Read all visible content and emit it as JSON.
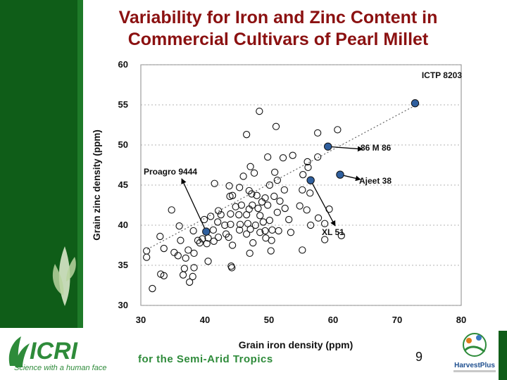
{
  "slide": {
    "title_line1": "Variability for Iron and Zinc Content in",
    "title_line2": "Commercial Cultivars of Pearl Millet",
    "page_number": "9",
    "tagline": "for the Semi-Arid Tropics",
    "logo_left": {
      "name": "ICRISAT",
      "slogan": "Science with a human face"
    },
    "logo_right": {
      "name": "HarvestPlus"
    },
    "colors": {
      "title": "#8b1111",
      "sidebar": "#0f5d18",
      "highlight": "#2f5f9e",
      "tagline": "#2e8b3a"
    }
  },
  "chart_data": {
    "type": "scatter",
    "xlabel": "Grain iron density (ppm)",
    "ylabel": "Grain zinc density (ppm)",
    "xlim": [
      30,
      80
    ],
    "ylim": [
      30,
      60
    ],
    "xticks": [
      30,
      40,
      50,
      60,
      70,
      80
    ],
    "yticks": [
      30,
      35,
      40,
      45,
      50,
      55,
      60
    ],
    "grid": "horizontal dashed",
    "trendline": {
      "x": [
        31,
        73
      ],
      "y": [
        37,
        55
      ]
    },
    "series": [
      {
        "marker": "open circle",
        "points": [
          [
            48.5,
            54.2
          ],
          [
            51.1,
            52.3
          ],
          [
            57.6,
            51.5
          ],
          [
            60.7,
            51.9
          ],
          [
            46.5,
            51.3
          ],
          [
            53.7,
            48.7
          ],
          [
            57.6,
            48.5
          ],
          [
            49.8,
            48.5
          ],
          [
            52.2,
            48.4
          ],
          [
            47.1,
            47.3
          ],
          [
            56.0,
            47.9
          ],
          [
            56.1,
            47.2
          ],
          [
            50.9,
            46.6
          ],
          [
            47.7,
            46.5
          ],
          [
            46.0,
            46.1
          ],
          [
            55.3,
            46.3
          ],
          [
            51.3,
            45.6
          ],
          [
            41.5,
            45.2
          ],
          [
            43.8,
            44.9
          ],
          [
            50.1,
            45.0
          ],
          [
            52.4,
            44.4
          ],
          [
            55.2,
            44.4
          ],
          [
            56.4,
            44.0
          ],
          [
            45.4,
            44.7
          ],
          [
            46.9,
            44.3
          ],
          [
            47.3,
            43.9
          ],
          [
            48.1,
            43.7
          ],
          [
            49.4,
            43.4
          ],
          [
            50.8,
            43.6
          ],
          [
            43.9,
            43.6
          ],
          [
            44.3,
            43.7
          ],
          [
            51.7,
            43.0
          ],
          [
            48.9,
            42.9
          ],
          [
            49.8,
            42.5
          ],
          [
            48.3,
            42.1
          ],
          [
            47.4,
            42.5
          ],
          [
            45.7,
            42.5
          ],
          [
            44.8,
            42.3
          ],
          [
            46.9,
            42.0
          ],
          [
            52.5,
            42.1
          ],
          [
            54.8,
            42.4
          ],
          [
            55.9,
            41.9
          ],
          [
            48.6,
            41.2
          ],
          [
            46.5,
            41.3
          ],
          [
            45.3,
            41.3
          ],
          [
            44.0,
            41.4
          ],
          [
            42.5,
            41.3
          ],
          [
            40.9,
            41.1
          ],
          [
            42.1,
            41.8
          ],
          [
            51.3,
            41.6
          ],
          [
            57.7,
            40.9
          ],
          [
            59.4,
            42.0
          ],
          [
            58.7,
            40.2
          ],
          [
            56.5,
            40.0
          ],
          [
            53.1,
            40.7
          ],
          [
            50.1,
            40.6
          ],
          [
            49.1,
            40.4
          ],
          [
            47.9,
            40.0
          ],
          [
            46.7,
            40.2
          ],
          [
            45.5,
            40.1
          ],
          [
            44.0,
            40.1
          ],
          [
            43.1,
            40.0
          ],
          [
            42.0,
            40.4
          ],
          [
            39.9,
            40.7
          ],
          [
            34.8,
            41.9
          ],
          [
            50.5,
            39.4
          ],
          [
            51.5,
            39.3
          ],
          [
            53.4,
            39.1
          ],
          [
            48.6,
            39.1
          ],
          [
            49.4,
            39.3
          ],
          [
            45.4,
            39.4
          ],
          [
            47.1,
            39.5
          ],
          [
            46.5,
            38.9
          ],
          [
            41.3,
            39.4
          ],
          [
            38.2,
            39.3
          ],
          [
            36.0,
            39.9
          ],
          [
            43.3,
            38.9
          ],
          [
            42.1,
            38.5
          ],
          [
            40.5,
            38.4
          ],
          [
            39.6,
            38.3
          ],
          [
            38.9,
            38.1
          ],
          [
            39.2,
            37.8
          ],
          [
            40.3,
            37.7
          ],
          [
            41.4,
            38.0
          ],
          [
            43.7,
            38.5
          ],
          [
            49.5,
            38.4
          ],
          [
            50.4,
            38.1
          ],
          [
            44.3,
            37.5
          ],
          [
            47.5,
            37.8
          ],
          [
            58.7,
            38.2
          ],
          [
            61.3,
            38.7
          ],
          [
            33.0,
            38.6
          ],
          [
            36.2,
            38.1
          ],
          [
            35.2,
            36.6
          ],
          [
            33.6,
            37.1
          ],
          [
            35.8,
            36.2
          ],
          [
            37.4,
            36.9
          ],
          [
            38.3,
            36.5
          ],
          [
            47.0,
            36.5
          ],
          [
            50.3,
            36.8
          ],
          [
            55.2,
            36.9
          ],
          [
            30.9,
            36.8
          ],
          [
            30.9,
            36.0
          ],
          [
            37.0,
            35.9
          ],
          [
            40.5,
            35.5
          ],
          [
            36.8,
            34.6
          ],
          [
            38.3,
            34.7
          ],
          [
            44.1,
            34.9
          ],
          [
            44.2,
            34.7
          ],
          [
            33.1,
            33.9
          ],
          [
            33.6,
            33.7
          ],
          [
            36.6,
            33.8
          ],
          [
            38.1,
            33.6
          ],
          [
            37.6,
            32.9
          ],
          [
            31.8,
            32.1
          ]
        ]
      }
    ],
    "highlighted": [
      {
        "label": "ICTP 8203",
        "x": 72.8,
        "y": 55.2
      },
      {
        "label": "86 M 86",
        "x": 59.2,
        "y": 49.8
      },
      {
        "label": "Ajeet 38",
        "x": 61.1,
        "y": 46.3
      },
      {
        "label": "XL 51",
        "x": 56.5,
        "y": 45.6
      },
      {
        "label": "Proagro 9444",
        "x": 40.2,
        "y": 39.2
      }
    ]
  }
}
